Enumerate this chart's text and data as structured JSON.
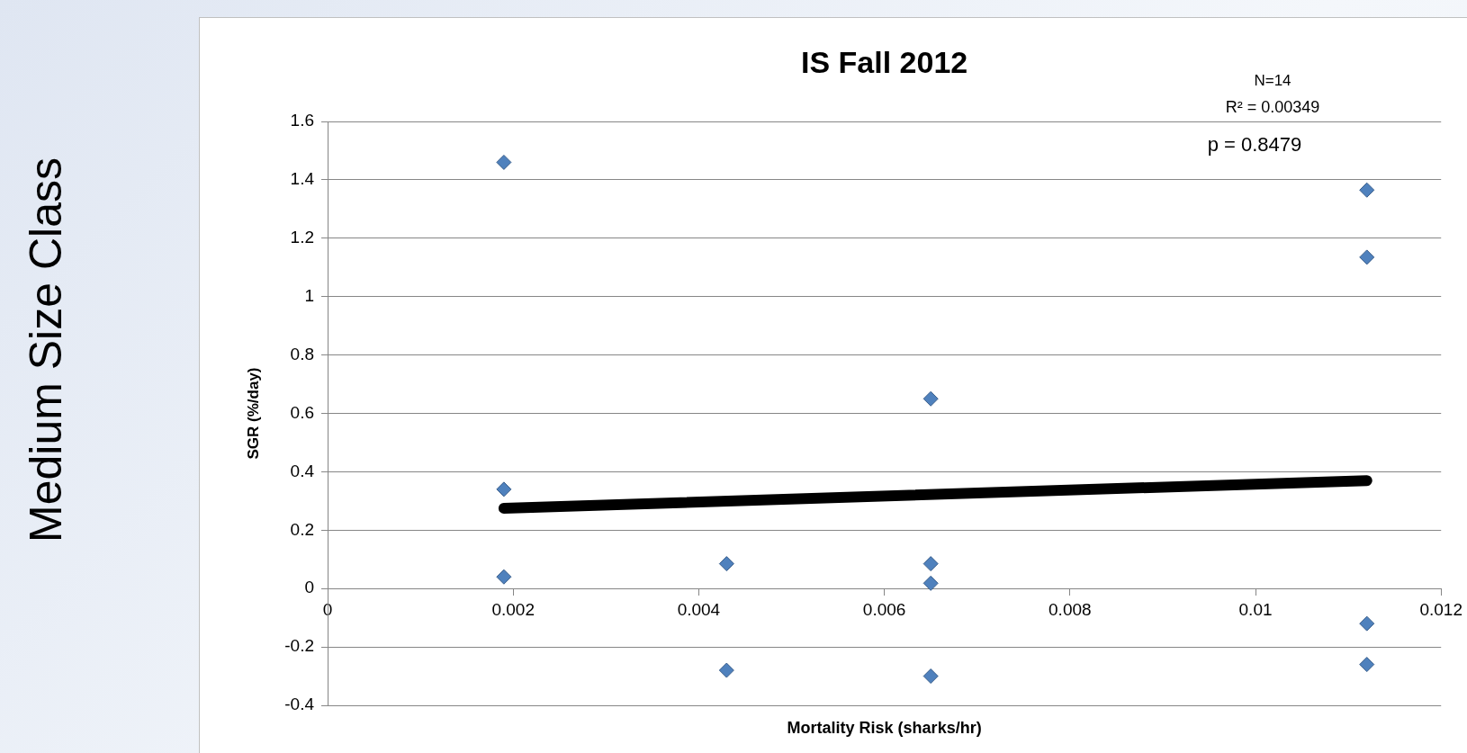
{
  "chart_data": {
    "type": "scatter",
    "title": "IS Fall 2012",
    "xlabel": "Mortality Risk (sharks/hr)",
    "ylabel": "SGR (%/day)",
    "xlim": [
      0,
      0.012
    ],
    "xticks": [
      0,
      0.002,
      0.004,
      0.006,
      0.008,
      0.01,
      0.012
    ],
    "ylim": [
      -0.4,
      1.6
    ],
    "yticks": [
      -0.4,
      -0.2,
      0,
      0.2,
      0.4,
      0.6,
      0.8,
      1,
      1.2,
      1.4,
      1.6
    ],
    "grid": "y",
    "legend": false,
    "marker": "diamond",
    "annotations": [
      "N=14",
      "R² = 0.00349",
      "p = 0.8479",
      "Medium Size Class"
    ],
    "series": [
      {
        "type": "scatter",
        "color": "#4f81bd",
        "x": [
          0.0019,
          0.0019,
          0.0019,
          0.0043,
          0.0043,
          0.0065,
          0.0065,
          0.0065,
          0.0065,
          0.0112,
          0.0112,
          0.0112,
          0.0112
        ],
        "values": [
          1.46,
          0.34,
          0.04,
          0.085,
          -0.28,
          0.65,
          0.085,
          0.018,
          -0.3,
          1.365,
          1.135,
          -0.12,
          -0.26
        ]
      },
      {
        "type": "line",
        "color": "#000000",
        "marker": "none",
        "x": [
          0.0019,
          0.0112
        ],
        "values": [
          0.275,
          0.37
        ]
      }
    ]
  }
}
